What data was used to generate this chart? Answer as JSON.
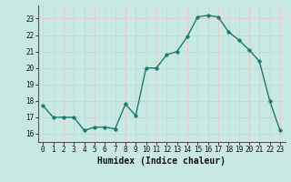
{
  "x": [
    0,
    1,
    2,
    3,
    4,
    5,
    6,
    7,
    8,
    9,
    10,
    11,
    12,
    13,
    14,
    15,
    16,
    17,
    18,
    19,
    20,
    21,
    22,
    23
  ],
  "y": [
    17.7,
    17.0,
    17.0,
    17.0,
    16.2,
    16.4,
    16.4,
    16.3,
    17.8,
    17.1,
    20.0,
    20.0,
    20.8,
    21.0,
    21.9,
    23.1,
    23.2,
    23.1,
    22.2,
    21.7,
    21.1,
    20.4,
    18.0,
    16.2
  ],
  "line_color": "#1a7a6e",
  "marker_color": "#1a7a6e",
  "bg_color": "#c8e8e4",
  "grid_color": "#e8c8c8",
  "ylim": [
    15.5,
    23.8
  ],
  "xlim": [
    -0.5,
    23.5
  ],
  "yticks": [
    16,
    17,
    18,
    19,
    20,
    21,
    22,
    23
  ],
  "xticks": [
    0,
    1,
    2,
    3,
    4,
    5,
    6,
    7,
    8,
    9,
    10,
    11,
    12,
    13,
    14,
    15,
    16,
    17,
    18,
    19,
    20,
    21,
    22,
    23
  ],
  "xtick_labels": [
    "0",
    "1",
    "2",
    "3",
    "4",
    "5",
    "6",
    "7",
    "8",
    "9",
    "10",
    "11",
    "12",
    "13",
    "14",
    "15",
    "16",
    "17",
    "18",
    "19",
    "20",
    "21",
    "22",
    "23"
  ],
  "xlabel": "Humidex (Indice chaleur)",
  "tick_fontsize": 5.5,
  "xlabel_fontsize": 7.0,
  "linewidth": 1.0,
  "markersize": 2.5
}
